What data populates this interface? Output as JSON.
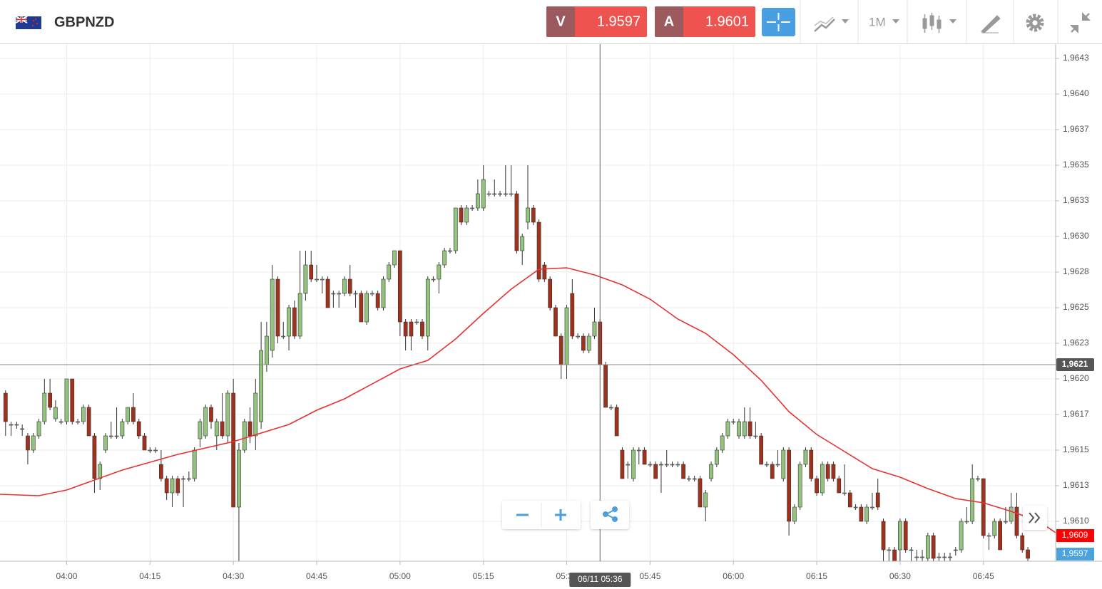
{
  "header": {
    "symbol": "GBPNZD",
    "sell": {
      "label": "V",
      "price": "1.9597"
    },
    "buy": {
      "label": "A",
      "price": "1.9601"
    },
    "timeframe": "1M"
  },
  "chart_data": {
    "type": "candlestick",
    "x": [
      "03:49",
      "03:50",
      "03:51",
      "03:52",
      "03:53",
      "03:54",
      "03:55",
      "03:56",
      "03:57",
      "03:58",
      "03:59",
      "04:00",
      "04:01",
      "04:02",
      "04:03",
      "04:04",
      "04:05",
      "04:06",
      "04:07",
      "04:08",
      "04:09",
      "04:10",
      "04:11",
      "04:12",
      "04:13",
      "04:14",
      "04:15",
      "04:16",
      "04:17",
      "04:18",
      "04:19",
      "04:20",
      "04:21",
      "04:22",
      "04:23",
      "04:24",
      "04:25",
      "04:26",
      "04:27",
      "04:28",
      "04:29",
      "04:30",
      "04:31",
      "04:32",
      "04:33",
      "04:34",
      "04:35",
      "04:36",
      "04:37",
      "04:38",
      "04:39",
      "04:40",
      "04:41",
      "04:42",
      "04:43",
      "04:44",
      "04:45",
      "04:46",
      "04:47",
      "04:48",
      "04:49",
      "04:50",
      "04:51",
      "04:52",
      "04:53",
      "04:54",
      "04:55",
      "04:56",
      "04:57",
      "04:58",
      "04:59",
      "05:00",
      "05:01",
      "05:02",
      "05:03",
      "05:04",
      "05:05",
      "05:06",
      "05:07",
      "05:08",
      "05:09",
      "05:10",
      "05:11",
      "05:12",
      "05:13",
      "05:14",
      "05:15",
      "05:16",
      "05:17",
      "05:18",
      "05:19",
      "05:20",
      "05:21",
      "05:22",
      "05:23",
      "05:24",
      "05:25",
      "05:26",
      "05:27",
      "05:28",
      "05:29",
      "05:30",
      "05:31",
      "05:32",
      "05:33",
      "05:34",
      "05:35",
      "05:36",
      "05:37",
      "05:38",
      "05:39",
      "05:40",
      "05:41",
      "05:42",
      "05:43",
      "05:44",
      "05:45",
      "05:46",
      "05:47",
      "05:48",
      "05:49",
      "05:50",
      "05:51",
      "05:52",
      "05:53",
      "05:54",
      "05:55",
      "05:56",
      "05:57",
      "05:58",
      "05:59",
      "06:00",
      "06:01",
      "06:02",
      "06:03",
      "06:04",
      "06:05",
      "06:06",
      "06:07",
      "06:08",
      "06:09",
      "06:10",
      "06:11",
      "06:12",
      "06:13",
      "06:14",
      "06:15",
      "06:16",
      "06:17",
      "06:18",
      "06:19",
      "06:20",
      "06:21",
      "06:22",
      "06:23",
      "06:24",
      "06:25",
      "06:26",
      "06:27",
      "06:28",
      "06:29",
      "06:30",
      "06:31",
      "06:32",
      "06:33",
      "06:34",
      "06:35",
      "06:36",
      "06:37",
      "06:38",
      "06:39",
      "06:40",
      "06:41",
      "06:42",
      "06:43",
      "06:44",
      "06:45",
      "06:46",
      "06:47",
      "06:48",
      "06:49",
      "06:50",
      "06:51",
      "06:52",
      "06:53"
    ],
    "open": [
      1.9619,
      1.96168,
      1.96168,
      1.96165,
      1.9616,
      1.9615,
      1.9616,
      1.9617,
      1.9619,
      1.96172,
      1.9617,
      1.9617,
      1.962,
      1.9617,
      1.9617,
      1.9618,
      1.9616,
      1.9613,
      1.9615,
      1.9616,
      1.9616,
      1.9616,
      1.9617,
      1.9618,
      1.9617,
      1.9616,
      1.9615,
      1.9615,
      1.9614,
      1.9613,
      1.9612,
      1.9613,
      1.9613,
      1.9613,
      1.9613,
      1.96158,
      1.9616,
      1.9618,
      1.9616,
      1.9617,
      1.9616,
      1.9619,
      1.9611,
      1.9615,
      1.9617,
      1.9616,
      1.9617,
      1.9621,
      1.9622,
      1.9627,
      1.9623,
      1.9623,
      1.9625,
      1.9623,
      1.9626,
      1.9628,
      1.9627,
      1.9627,
      1.9627,
      1.9626,
      1.9626,
      1.9626,
      1.9627,
      1.9626,
      1.9626,
      1.9624,
      1.9626,
      1.9626,
      1.9625,
      1.9627,
      1.9628,
      1.9629,
      1.9624,
      1.9624,
      1.9624,
      1.9624,
      1.9623,
      1.9627,
      1.9627,
      1.9628,
      1.9629,
      1.9629,
      1.9632,
      1.9631,
      1.9632,
      1.9632,
      1.9632,
      1.9633,
      1.9633,
      1.9633,
      1.9633,
      1.9633,
      1.9633,
      1.9629,
      1.9631,
      1.9632,
      1.9631,
      1.9628,
      1.9627,
      1.9625,
      1.9623,
      1.9621,
      1.9626,
      1.9623,
      1.9623,
      1.9622,
      1.9623,
      1.9624,
      1.9621,
      1.9618,
      1.9618,
      1.9615,
      1.9614,
      1.9613,
      1.9615,
      1.9615,
      1.9614,
      1.9614,
      1.9614,
      1.9614,
      1.9614,
      1.9614,
      1.9614,
      1.9613,
      1.9613,
      1.9613,
      1.9611,
      1.9613,
      1.9614,
      1.9615,
      1.9616,
      1.9617,
      1.9616,
      1.9616,
      1.9617,
      1.9616,
      1.9616,
      1.9614,
      1.9614,
      1.9614,
      1.9613,
      1.9615,
      1.961,
      1.9611,
      1.9614,
      1.9615,
      1.9613,
      1.9612,
      1.9614,
      1.9614,
      1.9613,
      1.9612,
      1.9612,
      1.9611,
      1.9611,
      1.961,
      1.9611,
      1.9612,
      1.961,
      1.9608,
      1.9608,
      1.9608,
      1.961,
      1.9608,
      1.96075,
      1.96075,
      1.96074,
      1.9609,
      1.96075,
      1.96075,
      1.96075,
      1.9608,
      1.9608,
      1.961,
      1.961,
      1.9613,
      1.9613,
      1.9609,
      1.9609,
      1.961,
      1.961,
      1.961,
      1.9611,
      1.9609,
      1.9608
    ],
    "high": [
      1.96192,
      1.9617,
      1.9617,
      1.96168,
      1.96162,
      1.96162,
      1.96172,
      1.962,
      1.962,
      1.96185,
      1.96172,
      1.962,
      1.962,
      1.96172,
      1.96182,
      1.96182,
      1.96162,
      1.96142,
      1.96162,
      1.9617,
      1.9618,
      1.96172,
      1.9618,
      1.9619,
      1.96172,
      1.96162,
      1.96152,
      1.96152,
      1.9615,
      1.96132,
      1.96132,
      1.96132,
      1.96132,
      1.96135,
      1.96152,
      1.96172,
      1.96182,
      1.96182,
      1.96172,
      1.9619,
      1.96192,
      1.962,
      1.96155,
      1.96172,
      1.9618,
      1.962,
      1.9624,
      1.9624,
      1.9628,
      1.96272,
      1.9624,
      1.96252,
      1.96255,
      1.9629,
      1.9629,
      1.9629,
      1.9628,
      1.96272,
      1.96272,
      1.96262,
      1.96262,
      1.96272,
      1.9628,
      1.96262,
      1.96262,
      1.96262,
      1.96262,
      1.96262,
      1.96272,
      1.96282,
      1.9629,
      1.9629,
      1.96242,
      1.96242,
      1.96242,
      1.96242,
      1.96272,
      1.96272,
      1.96282,
      1.96292,
      1.96292,
      1.9632,
      1.96322,
      1.96322,
      1.96322,
      1.9634,
      1.9635,
      1.96332,
      1.9634,
      1.96332,
      1.9635,
      1.9635,
      1.96332,
      1.96302,
      1.9635,
      1.96322,
      1.96312,
      1.96282,
      1.96272,
      1.96252,
      1.96232,
      1.96252,
      1.9627,
      1.96232,
      1.96232,
      1.96232,
      1.9625,
      1.96242,
      1.96212,
      1.96182,
      1.96182,
      1.96152,
      1.96142,
      1.96152,
      1.96152,
      1.96152,
      1.96142,
      1.96142,
      1.96142,
      1.9615,
      1.96142,
      1.96142,
      1.96142,
      1.96132,
      1.96132,
      1.96132,
      1.96122,
      1.96142,
      1.96152,
      1.96162,
      1.96172,
      1.96172,
      1.96172,
      1.9618,
      1.9618,
      1.9617,
      1.96162,
      1.96142,
      1.96142,
      1.9615,
      1.96152,
      1.96152,
      1.96112,
      1.96142,
      1.96152,
      1.96152,
      1.96132,
      1.96142,
      1.96142,
      1.96142,
      1.96132,
      1.9614,
      1.96122,
      1.96112,
      1.96112,
      1.96112,
      1.9612,
      1.9613,
      1.96102,
      1.96082,
      1.96082,
      1.96102,
      1.96102,
      1.96082,
      1.9608,
      1.9608,
      1.96092,
      1.96092,
      1.96078,
      1.96078,
      1.96078,
      1.96082,
      1.96102,
      1.9611,
      1.9614,
      1.96132,
      1.9613,
      1.96092,
      1.96102,
      1.96102,
      1.9611,
      1.9612,
      1.9612,
      1.96092,
      1.96082
    ],
    "low": [
      1.9616,
      1.9616,
      1.96165,
      1.9616,
      1.9614,
      1.96148,
      1.96158,
      1.96168,
      1.96178,
      1.9617,
      1.96168,
      1.96168,
      1.96168,
      1.96168,
      1.96168,
      1.9616,
      1.9612,
      1.96122,
      1.96148,
      1.96158,
      1.96158,
      1.96158,
      1.96168,
      1.96168,
      1.96158,
      1.9615,
      1.96148,
      1.96148,
      1.96128,
      1.96115,
      1.9611,
      1.96118,
      1.9611,
      1.96128,
      1.96128,
      1.96152,
      1.96158,
      1.96165,
      1.9615,
      1.96158,
      1.96155,
      1.9611,
      1.96072,
      1.96148,
      1.96155,
      1.9615,
      1.96165,
      1.96205,
      1.96215,
      1.96225,
      1.96228,
      1.9622,
      1.96228,
      1.96228,
      1.96255,
      1.96268,
      1.96268,
      1.9626,
      1.9625,
      1.9625,
      1.9625,
      1.96258,
      1.96258,
      1.9625,
      1.9624,
      1.96238,
      1.96258,
      1.96248,
      1.96248,
      1.96268,
      1.96278,
      1.9623,
      1.9622,
      1.9622,
      1.96238,
      1.96228,
      1.9622,
      1.96268,
      1.9626,
      1.96278,
      1.96288,
      1.96288,
      1.96308,
      1.96308,
      1.96318,
      1.96318,
      1.96318,
      1.96328,
      1.96328,
      1.96328,
      1.96328,
      1.96328,
      1.96288,
      1.9628,
      1.96305,
      1.96308,
      1.96268,
      1.96268,
      1.96248,
      1.9623,
      1.962,
      1.962,
      1.96228,
      1.96228,
      1.96218,
      1.96218,
      1.96228,
      1.9621,
      1.9618,
      1.96178,
      1.9616,
      1.9613,
      1.9613,
      1.96128,
      1.9614,
      1.9614,
      1.96138,
      1.9613,
      1.9612,
      1.96138,
      1.96138,
      1.96138,
      1.9613,
      1.96128,
      1.96128,
      1.9611,
      1.961,
      1.96128,
      1.96138,
      1.96148,
      1.96158,
      1.96168,
      1.96158,
      1.96158,
      1.96158,
      1.96158,
      1.9614,
      1.96138,
      1.9613,
      1.96138,
      1.96128,
      1.9609,
      1.96098,
      1.96108,
      1.96138,
      1.96128,
      1.96118,
      1.96118,
      1.96128,
      1.96128,
      1.9612,
      1.96118,
      1.9611,
      1.96108,
      1.961,
      1.96098,
      1.96108,
      1.96108,
      1.96072,
      1.96072,
      1.96072,
      1.96072,
      1.96078,
      1.96072,
      1.96072,
      1.96072,
      1.96072,
      1.96072,
      1.96072,
      1.96072,
      1.96072,
      1.96076,
      1.96078,
      1.96098,
      1.96098,
      1.96128,
      1.96088,
      1.9608,
      1.96088,
      1.9608,
      1.96098,
      1.96098,
      1.96088,
      1.96078,
      1.96072
    ],
    "close": [
      1.9617,
      1.96168,
      1.96168,
      1.96165,
      1.9615,
      1.9616,
      1.9617,
      1.9619,
      1.9618,
      1.9618,
      1.9617,
      1.962,
      1.9617,
      1.9617,
      1.9618,
      1.9616,
      1.9613,
      1.9614,
      1.9616,
      1.9616,
      1.9616,
      1.9617,
      1.9618,
      1.9617,
      1.9616,
      1.9615,
      1.9615,
      1.9615,
      1.9613,
      1.9612,
      1.9613,
      1.9612,
      1.9613,
      1.9613,
      1.9615,
      1.9617,
      1.9618,
      1.9617,
      1.9617,
      1.9616,
      1.9619,
      1.9611,
      1.9615,
      1.9617,
      1.9616,
      1.9619,
      1.9622,
      1.9623,
      1.9627,
      1.9623,
      1.9623,
      1.9625,
      1.9623,
      1.9626,
      1.9628,
      1.9627,
      1.9627,
      1.9627,
      1.9625,
      1.9626,
      1.9626,
      1.9627,
      1.9626,
      1.9626,
      1.9624,
      1.9626,
      1.9626,
      1.9625,
      1.9627,
      1.9628,
      1.9629,
      1.9624,
      1.9623,
      1.9623,
      1.9624,
      1.9623,
      1.9627,
      1.9627,
      1.9628,
      1.9629,
      1.9629,
      1.9632,
      1.9631,
      1.9632,
      1.9632,
      1.9633,
      1.9634,
      1.9633,
      1.9633,
      1.9633,
      1.9633,
      1.9633,
      1.9629,
      1.963,
      1.9632,
      1.9631,
      1.9627,
      1.9627,
      1.9625,
      1.9623,
      1.9621,
      1.9625,
      1.9623,
      1.9623,
      1.9622,
      1.9623,
      1.9624,
      1.9621,
      1.9618,
      1.9618,
      1.9616,
      1.9613,
      1.9614,
      1.9615,
      1.9615,
      1.9614,
      1.9614,
      1.9613,
      1.9614,
      1.9614,
      1.9614,
      1.9614,
      1.9613,
      1.9613,
      1.9613,
      1.9611,
      1.9612,
      1.9614,
      1.9615,
      1.9616,
      1.9617,
      1.9617,
      1.9617,
      1.9617,
      1.9616,
      1.9616,
      1.9614,
      1.9614,
      1.9613,
      1.9614,
      1.9615,
      1.961,
      1.9611,
      1.9614,
      1.9615,
      1.9613,
      1.9612,
      1.9614,
      1.9613,
      1.9613,
      1.9612,
      1.9612,
      1.9611,
      1.9611,
      1.961,
      1.9611,
      1.9611,
      1.9611,
      1.9608,
      1.9608,
      1.96072,
      1.961,
      1.9608,
      1.9608,
      1.96075,
      1.96075,
      1.9609,
      1.96074,
      1.96075,
      1.96075,
      1.96075,
      1.9608,
      1.961,
      1.961,
      1.9613,
      1.9613,
      1.9609,
      1.9609,
      1.961,
      1.9608,
      1.961,
      1.9611,
      1.9609,
      1.9608,
      1.96074
    ],
    "up_color": "#93c47d",
    "down_color": "#a0311c",
    "ma": {
      "color": "#e8312f",
      "x": [
        "03:48",
        "03:55",
        "04:00",
        "04:10",
        "04:20",
        "04:30",
        "04:40",
        "04:45",
        "04:50",
        "05:00",
        "05:05",
        "05:10",
        "05:15",
        "05:20",
        "05:25",
        "05:30",
        "05:35",
        "05:40",
        "05:45",
        "05:50",
        "05:55",
        "06:00",
        "06:05",
        "06:10",
        "06:15",
        "06:20",
        "06:25",
        "06:30",
        "06:35",
        "06:40",
        "06:45",
        "06:50",
        "06:55",
        "06:58"
      ],
      "values": [
        1.96119,
        1.96118,
        1.96122,
        1.96136,
        1.96147,
        1.96156,
        1.96168,
        1.96178,
        1.96186,
        1.96207,
        1.96213,
        1.96228,
        1.96246,
        1.96263,
        1.96277,
        1.96278,
        1.96273,
        1.96266,
        1.96256,
        1.96242,
        1.96232,
        1.96217,
        1.96199,
        1.96177,
        1.96161,
        1.96149,
        1.96137,
        1.96131,
        1.96123,
        1.96116,
        1.96113,
        1.96107,
        1.961,
        1.96092
      ]
    },
    "xlim": [
      "03:48",
      "06:58"
    ],
    "xticks": [
      "04:00",
      "04:15",
      "04:30",
      "04:45",
      "05:00",
      "05:15",
      "05:30",
      "05:45",
      "06:00",
      "06:15",
      "06:30",
      "06:45"
    ],
    "ylim": [
      1.96072,
      1.96435
    ],
    "yticks": [
      {
        "value": 1.96425,
        "label": "1,9643"
      },
      {
        "value": 1.964,
        "label": "1,9640"
      },
      {
        "value": 1.96375,
        "label": "1,9637"
      },
      {
        "value": 1.9635,
        "label": "1,9635"
      },
      {
        "value": 1.96325,
        "label": "1,9633"
      },
      {
        "value": 1.963,
        "label": "1,9630"
      },
      {
        "value": 1.96275,
        "label": "1,9628"
      },
      {
        "value": 1.9625,
        "label": "1,9625"
      },
      {
        "value": 1.96225,
        "label": "1,9623"
      },
      {
        "value": 1.962,
        "label": "1,9620"
      },
      {
        "value": 1.96175,
        "label": "1,9617"
      },
      {
        "value": 1.9615,
        "label": "1,9615"
      },
      {
        "value": 1.96125,
        "label": "1,9613"
      },
      {
        "value": 1.961,
        "label": "1,9610"
      }
    ],
    "grid": true,
    "crosshair": {
      "x_label": "06/11 05:36",
      "y": 1.9621,
      "y_label": "1,9621"
    },
    "price_labels": [
      {
        "value": 1.9609,
        "label": "1,9609",
        "color": "#ff0000"
      }
    ],
    "bid_label": {
      "label": "1,9597",
      "color": "#4aa3df"
    }
  }
}
